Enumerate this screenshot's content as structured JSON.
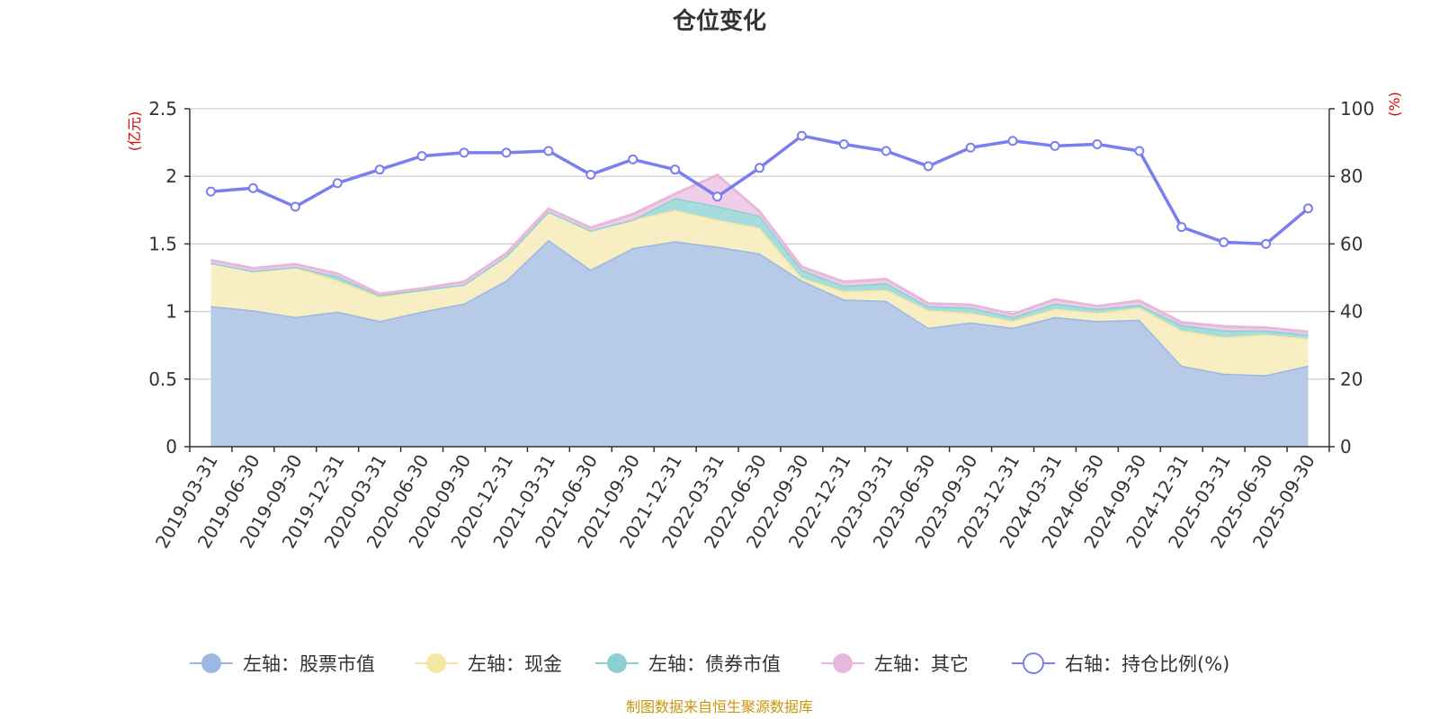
{
  "chart_data": {
    "type": "area",
    "title": "仓位变化",
    "left_axis_unit": "(亿元)",
    "right_axis_unit": "(%)",
    "left_ylim": [
      0,
      2.5
    ],
    "left_ticks": [
      "0",
      "0.5",
      "1",
      "1.5",
      "2",
      "2.5"
    ],
    "right_ylim": [
      0,
      100
    ],
    "right_ticks": [
      "0",
      "20",
      "40",
      "60",
      "80",
      "100"
    ],
    "x_tick_labels": [
      "2019-03-31",
      "2019-06-30",
      "2019-09-30",
      "2019-12-31",
      "2020-03-31",
      "2020-06-30",
      "2020-09-30",
      "2020-12-31",
      "2021-03-31",
      "2021-06-30",
      "2021-09-30",
      "2021-12-31",
      "2022-03-31",
      "2022-06-30",
      "2022-09-30",
      "2022-12-31",
      "2023-03-31",
      "2023-06-30",
      "2023-09-30",
      "2023-12-31",
      "2024-03-31",
      "2024-06-30",
      "2024-09-30",
      "2024-12-31",
      "2025-03-31",
      "2025-06-30",
      "2025-09-30"
    ],
    "categories": [
      "2019-03-31",
      "2019-06-30",
      "2019-09-30",
      "2019-12-31",
      "2020-03-31",
      "2020-06-30",
      "2020-09-30",
      "2020-12-31",
      "2021-03-31",
      "2021-06-30",
      "2021-09-30",
      "2021-12-31",
      "2022-03-31",
      "2022-06-30",
      "2022-09-30",
      "2022-12-31",
      "2023-03-31",
      "2023-06-30",
      "2023-09-30",
      "2023-12-31",
      "2024-03-31",
      "2024-06-30",
      "2024-09-30",
      "2024-12-31",
      "2025-03-31",
      "2025-06-30",
      "2025-09-30"
    ],
    "series": [
      {
        "name": "左轴：股票市值",
        "axis": "left",
        "stacked": true,
        "color": "#9db8e0",
        "fill": "#b7cae8",
        "values": [
          1.04,
          1.01,
          0.96,
          1.0,
          0.93,
          1.0,
          1.06,
          1.23,
          1.53,
          1.31,
          1.47,
          1.52,
          1.48,
          1.43,
          1.23,
          1.09,
          1.08,
          0.88,
          0.92,
          0.88,
          0.96,
          0.93,
          0.94,
          0.6,
          0.54,
          0.53,
          0.6
        ]
      },
      {
        "name": "左轴：现金",
        "axis": "left",
        "stacked": true,
        "color": "#f5e6a3",
        "fill": "#f8eec4",
        "values": [
          0.32,
          0.29,
          0.37,
          0.23,
          0.18,
          0.16,
          0.14,
          0.18,
          0.21,
          0.29,
          0.21,
          0.23,
          0.2,
          0.19,
          0.02,
          0.06,
          0.08,
          0.13,
          0.07,
          0.05,
          0.06,
          0.06,
          0.09,
          0.26,
          0.27,
          0.3,
          0.2
        ]
      },
      {
        "name": "左轴：债券市值",
        "axis": "left",
        "stacked": true,
        "color": "#8ccfd2",
        "fill": "#a7dcdc",
        "values": [
          0,
          0,
          0,
          0.03,
          0.01,
          0,
          0,
          0,
          0,
          0,
          0,
          0.09,
          0.1,
          0.09,
          0.06,
          0.04,
          0.05,
          0.03,
          0.04,
          0.03,
          0.04,
          0.03,
          0.02,
          0.04,
          0.05,
          0.03,
          0.03
        ]
      },
      {
        "name": "左轴：其它",
        "axis": "left",
        "stacked": true,
        "color": "#e8b8dc",
        "fill": "#f0cde8",
        "values": [
          0.02,
          0.02,
          0.02,
          0.02,
          0.01,
          0.01,
          0.02,
          0.02,
          0.02,
          0.02,
          0.04,
          0.03,
          0.23,
          0.03,
          0.02,
          0.03,
          0.03,
          0.02,
          0.02,
          0.02,
          0.03,
          0.02,
          0.03,
          0.02,
          0.03,
          0.02,
          0.02
        ]
      },
      {
        "name": "右轴：持仓比例(%)",
        "axis": "right",
        "stacked": false,
        "color": "#7b7ef0",
        "values": [
          75.5,
          76.5,
          71,
          78,
          82,
          86,
          87,
          87,
          87.5,
          80.5,
          85,
          82,
          74,
          82.5,
          92,
          89.5,
          87.5,
          83,
          88.5,
          90.5,
          89,
          89.5,
          87.5,
          65,
          60.5,
          60,
          70.5
        ]
      }
    ],
    "legend_position": "bottom",
    "grid": true
  },
  "source_note": "制图数据来自恒生聚源数据库"
}
